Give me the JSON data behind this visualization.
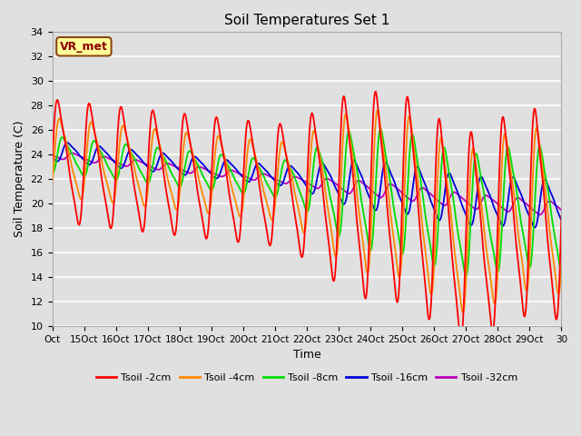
{
  "title": "Soil Temperatures Set 1",
  "xlabel": "Time",
  "ylabel": "Soil Temperature (C)",
  "ylim": [
    10,
    34
  ],
  "xlim": [
    0,
    960
  ],
  "background_color": "#e0e0e0",
  "plot_bg_color": "#e0e0e0",
  "grid_color": "#ffffff",
  "colors": {
    "2cm": "#ff0000",
    "4cm": "#ff8800",
    "8cm": "#00dd00",
    "16cm": "#0000dd",
    "32cm": "#bb00bb"
  },
  "legend_labels": [
    "Tsoil -2cm",
    "Tsoil -4cm",
    "Tsoil -8cm",
    "Tsoil -16cm",
    "Tsoil -32cm"
  ],
  "annotation_text": "VR_met",
  "x_tick_labels": [
    "Oct",
    "15Oct",
    "16Oct",
    "17Oct",
    "18Oct",
    "19Oct",
    "20Oct",
    "21Oct",
    "22Oct",
    "23Oct",
    "24Oct",
    "25Oct",
    "26Oct",
    "27Oct",
    "28Oct",
    "29Oct",
    "30"
  ],
  "x_tick_positions": [
    0,
    60,
    120,
    180,
    240,
    300,
    360,
    420,
    480,
    540,
    600,
    660,
    720,
    780,
    840,
    900,
    960
  ]
}
